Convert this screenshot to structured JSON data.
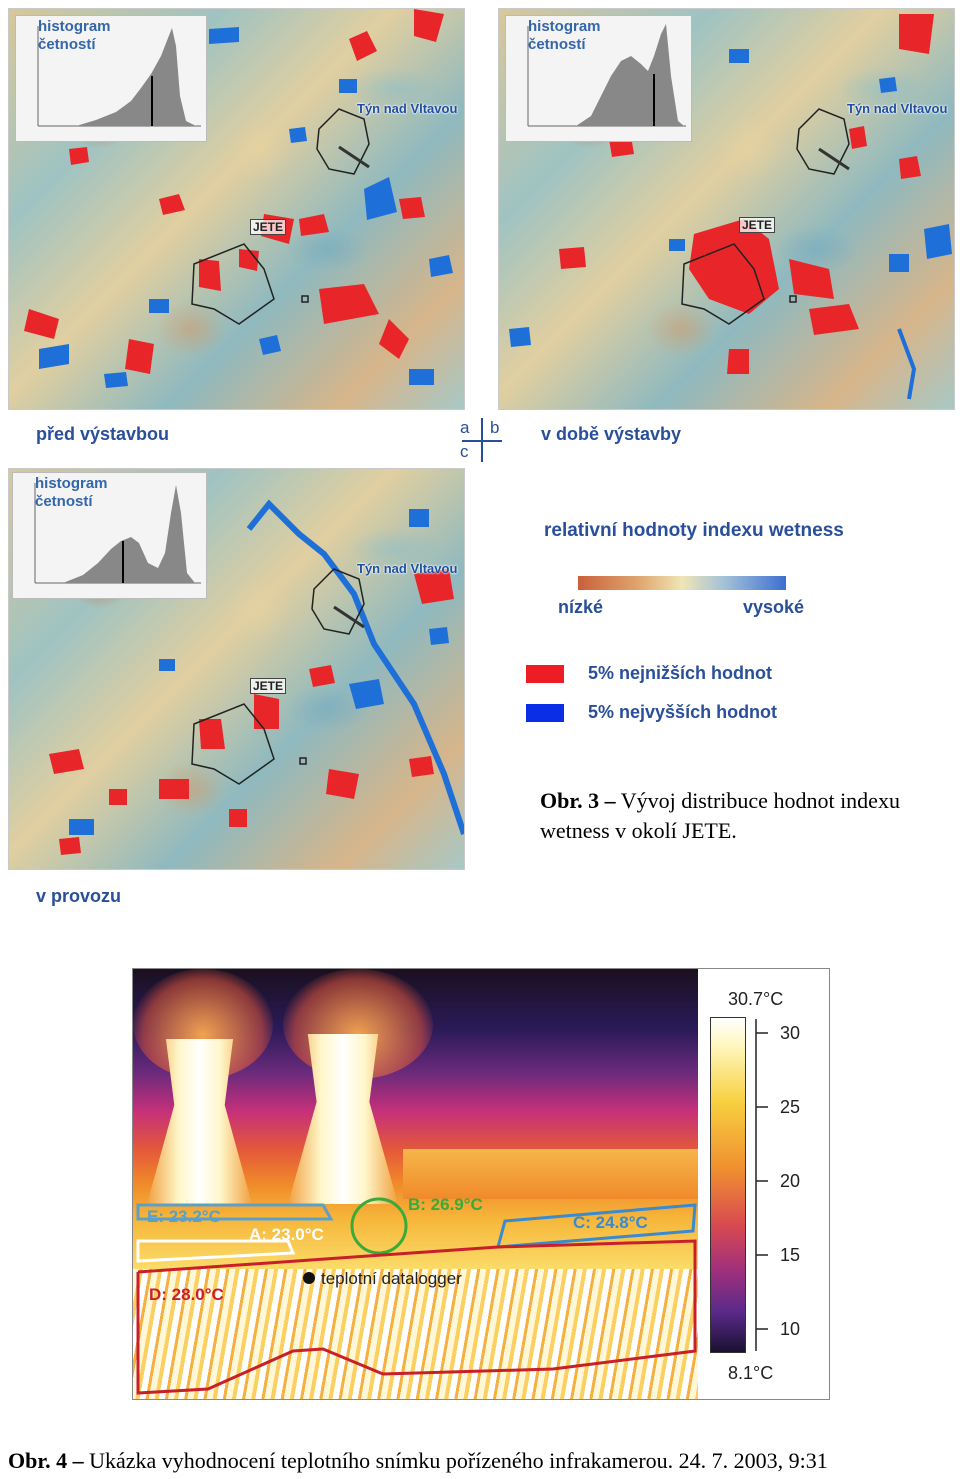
{
  "panel_a": {
    "histogram_title": "histogram\nčetností",
    "town": "Týn nad Vltavou",
    "plant": "JETE",
    "caption": "před výstavbou"
  },
  "panel_b": {
    "histogram_title": "histogram\nčetností",
    "town": "Týn nad Vltavou",
    "plant": "JETE",
    "caption": "v době výstavby"
  },
  "panel_c": {
    "histogram_title": "histogram\nčetností",
    "town": "Týn nad Vltavou",
    "plant": "JETE",
    "caption": "v provozu"
  },
  "panel_key": {
    "a": "a",
    "b": "b",
    "c": "c"
  },
  "legend": {
    "title": "relativní hodnoty indexu wetness",
    "low": "nízké",
    "high": "vysoké",
    "red_label": "5% nejnižších hodnot",
    "blue_label": "5% nejvyšších hodnot",
    "red_color": "#ee1c24",
    "blue_color": "#0a2ee6"
  },
  "figure3_caption": {
    "label": "Obr. 3 –",
    "text": " Vývoj distribuce hodnot indexu wetness v okolí  JETE."
  },
  "thermal": {
    "scale_max": "30.7°C",
    "scale_min": "8.1°C",
    "ticks": [
      "30",
      "25",
      "20",
      "15",
      "10"
    ],
    "areas": {
      "E": "E: 23.2°C",
      "A": "A: 23.0°C",
      "B": "B: 26.9°C",
      "C": "C: 24.8°C",
      "D": "D: 28.0°C"
    },
    "datalogger": "teplotní datalogger",
    "colors": {
      "E": "#5aa0c8",
      "A": "#ffffff",
      "B": "#3aaa3a",
      "C": "#3a8ad0",
      "D": "#c8202a"
    }
  },
  "figure4_caption": {
    "label": "Obr. 4 –",
    "text": " Ukázka vyhodnocení teplotního snímku pořízeného infrakamerou. 24. 7. 2003, 9:31"
  }
}
